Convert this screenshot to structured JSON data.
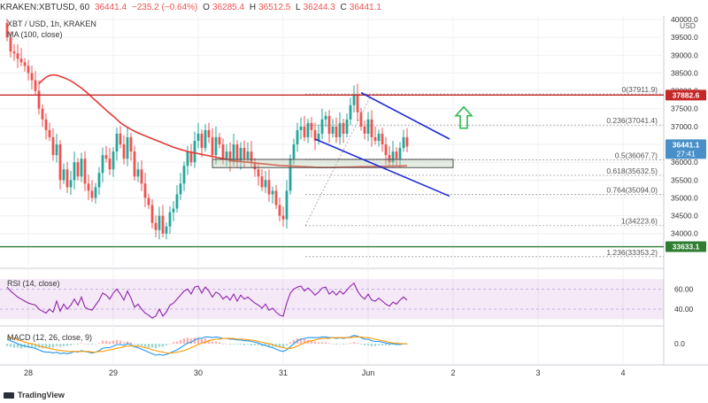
{
  "header": {
    "symbol": "KRAKEN:XBTUSD, 60",
    "last": "36441.4",
    "change": "−235.2 (−0.64%)",
    "o_label": "O",
    "o": "36285.4",
    "h_label": "H",
    "h": "36512.5",
    "l_label": "L",
    "l": "36244.3",
    "c_label": "C",
    "c": "36441.1"
  },
  "legend": {
    "pair": "XBT / USD, 1h, KRAKEN",
    "ma": "MA (100, close)",
    "rsi": "RSI (14, close)",
    "macd": "MACD (12, 26, close, 9)"
  },
  "currency": "USD",
  "branding": "TradingView",
  "colors": {
    "up": "#26a69a",
    "down": "#ef5350",
    "ma": "#e53935",
    "channel": "#1f2bd6",
    "resistance": "#c62828",
    "support": "#2e7d32",
    "rsi": "#8e24aa",
    "macd": "#2196f3",
    "signal": "#ff9800",
    "arrow": "#2db84a"
  },
  "chart_data": [
    {
      "type": "candlestick",
      "name": "price",
      "ylim": [
        33100,
        40100
      ],
      "y_ticks": [
        34000,
        34500,
        35000,
        35500,
        36000,
        36500,
        37000,
        37500,
        38000,
        38500,
        39000,
        39500,
        40000
      ],
      "y_tick_labels": [
        "34000.0",
        "34500.0",
        "35000.0",
        "35500.0",
        "36000.0",
        "36500.0",
        "37000.0",
        "37500.0",
        "38000.0",
        "38500.0",
        "39000.0",
        "39500.0",
        "40000.0"
      ],
      "x_ticks": [
        {
          "i": 6,
          "label": "28"
        },
        {
          "i": 30,
          "label": "29"
        },
        {
          "i": 54,
          "label": "30"
        },
        {
          "i": 78,
          "label": "31"
        },
        {
          "i": 102,
          "label": "Jun"
        },
        {
          "i": 126,
          "label": "2"
        },
        {
          "i": 150,
          "label": "3"
        },
        {
          "i": 174,
          "label": "4"
        }
      ],
      "closes": [
        39500,
        39100,
        39050,
        38900,
        38800,
        38700,
        38500,
        38300,
        38000,
        37500,
        37200,
        36900,
        36700,
        36200,
        36500,
        35500,
        35800,
        35300,
        35500,
        36000,
        35600,
        36100,
        35400,
        35200,
        35000,
        35300,
        35700,
        36200,
        36100,
        35800,
        36300,
        36800,
        36500,
        36100,
        36700,
        36300,
        35600,
        35800,
        35400,
        35000,
        34800,
        34300,
        34100,
        34500,
        34000,
        34200,
        34600,
        34700,
        35100,
        35400,
        35900,
        36300,
        36000,
        36600,
        36800,
        36400,
        36900,
        36700,
        36200,
        36700,
        36500,
        36100,
        36300,
        36000,
        36500,
        36000,
        36400,
        36100,
        36300,
        36000,
        35800,
        35600,
        35300,
        35500,
        35100,
        35200,
        34800,
        34500,
        34400,
        35200,
        36100,
        36500,
        36900,
        37000,
        36700,
        37100,
        36900,
        36600,
        36800,
        37200,
        37300,
        36800,
        37000,
        36700,
        37100,
        36800,
        37200,
        37600,
        37900,
        37400,
        37000,
        36800,
        37200,
        36700,
        36600,
        36800,
        36500,
        36200,
        36000,
        36300,
        36100,
        36400,
        36700,
        36441
      ],
      "opens_seed": 39900,
      "ma_100": [
        38200,
        38300,
        38380,
        38430,
        38450,
        38440,
        38410,
        38370,
        38330,
        38280,
        38220,
        38150,
        38080,
        38000,
        37910,
        37820,
        37730,
        37640,
        37550,
        37460,
        37370,
        37290,
        37200,
        37110,
        37040,
        36980,
        36920,
        36870,
        36820,
        36780,
        36740,
        36700,
        36660,
        36620,
        36580,
        36540,
        36500,
        36460,
        36420,
        36390,
        36360,
        36330,
        36300,
        36280,
        36260,
        36240,
        36220,
        36200,
        36180,
        36160,
        36140,
        36120,
        36100,
        36080,
        36060,
        36040,
        36030,
        36020,
        36010,
        36000,
        35990,
        35980,
        35970,
        35960,
        35950,
        35940,
        35930,
        35920,
        35910,
        35905,
        35900,
        35895,
        35890,
        35885,
        35880,
        35875,
        35870,
        35865,
        35860,
        35858,
        35856,
        35855,
        35855,
        35857,
        35860,
        35862,
        35864,
        35866,
        35868,
        35870,
        35872,
        35874,
        35876,
        35878,
        35880,
        35882,
        35884,
        35886,
        35888,
        35890,
        35892,
        35894,
        35896,
        35898,
        35900
      ]
    },
    {
      "type": "annotation",
      "name": "fibonacci",
      "levels": [
        {
          "ratio": "0",
          "price": 37911.9,
          "label": "0(37911.9)"
        },
        {
          "ratio": "0.236",
          "price": 37041.4,
          "label": "0.236(37041.4)"
        },
        {
          "ratio": "0.5",
          "price": 36067.7,
          "label": "0.5(36067.7)"
        },
        {
          "ratio": "0.618",
          "price": 35632.5,
          "label": "0.618(35632.5)"
        },
        {
          "ratio": "0.764",
          "price": 35094.0,
          "label": "0.764(35094.0)"
        },
        {
          "ratio": "1",
          "price": 34223.6,
          "label": "1(34223.6)"
        },
        {
          "ratio": "1.236",
          "price": 33353.2,
          "label": "1.236(33353.2)"
        }
      ],
      "resistance": 37882.6,
      "resistance_label": "37882.6",
      "support": 33633.1,
      "support_label": "33633.1",
      "current_price_label": "36441.1",
      "current_time_label": "27:41",
      "channel_upper": [
        {
          "i": 100,
          "p": 37950
        },
        {
          "i": 125,
          "p": 36650
        }
      ],
      "channel_lower": [
        {
          "i": 87,
          "p": 36650
        },
        {
          "i": 125,
          "p": 35050
        }
      ],
      "box": {
        "i0": 58,
        "i1": 126,
        "p0": 36080,
        "p1": 35850
      },
      "arrow_at": {
        "i": 129,
        "p": 37500
      }
    },
    {
      "type": "line",
      "name": "rsi",
      "ylim": [
        25,
        78
      ],
      "y_ticks": [
        40,
        60
      ],
      "y_tick_labels": [
        "40.00",
        "60.00"
      ],
      "band": [
        30,
        70
      ],
      "values": [
        62,
        58,
        55,
        52,
        50,
        48,
        46,
        45,
        44,
        40,
        38,
        36,
        40,
        37,
        48,
        38,
        45,
        40,
        44,
        50,
        44,
        52,
        42,
        40,
        39,
        44,
        49,
        56,
        54,
        50,
        56,
        60,
        55,
        49,
        58,
        51,
        42,
        45,
        40,
        36,
        34,
        31,
        33,
        40,
        33,
        37,
        44,
        46,
        50,
        54,
        58,
        60,
        55,
        62,
        63,
        56,
        62,
        58,
        52,
        57,
        55,
        50,
        53,
        49,
        55,
        48,
        54,
        50,
        52,
        49,
        46,
        44,
        41,
        45,
        39,
        41,
        37,
        34,
        33,
        46,
        56,
        60,
        62,
        63,
        58,
        61,
        58,
        54,
        57,
        61,
        62,
        55,
        58,
        54,
        58,
        55,
        59,
        63,
        66,
        58,
        53,
        50,
        55,
        49,
        48,
        51,
        48,
        45,
        43,
        47,
        45,
        49,
        52,
        49
      ]
    },
    {
      "type": "line",
      "name": "macd",
      "ylim": [
        -2.3,
        2.1
      ],
      "y_ticks": [
        0
      ],
      "y_tick_labels": [
        "0.0"
      ],
      "macd": [
        0.6,
        0.4,
        0.2,
        0.0,
        -0.2,
        -0.3,
        -0.4,
        -0.5,
        -0.6,
        -0.8,
        -1.0,
        -1.1,
        -1.1,
        -1.2,
        -1.1,
        -1.3,
        -1.2,
        -1.3,
        -1.2,
        -1.0,
        -1.1,
        -0.9,
        -1.0,
        -1.1,
        -1.2,
        -1.1,
        -0.9,
        -0.6,
        -0.5,
        -0.5,
        -0.3,
        -0.1,
        -0.1,
        -0.2,
        0.0,
        -0.1,
        -0.4,
        -0.5,
        -0.7,
        -0.9,
        -1.1,
        -1.3,
        -1.5,
        -1.4,
        -1.5,
        -1.4,
        -1.2,
        -1.0,
        -0.8,
        -0.5,
        -0.2,
        0.1,
        0.2,
        0.5,
        0.7,
        0.7,
        0.9,
        0.9,
        0.8,
        0.9,
        0.8,
        0.7,
        0.7,
        0.6,
        0.6,
        0.5,
        0.5,
        0.4,
        0.4,
        0.3,
        0.2,
        0.1,
        -0.1,
        -0.2,
        -0.4,
        -0.5,
        -0.7,
        -0.9,
        -1.0,
        -0.8,
        -0.4,
        0.0,
        0.4,
        0.6,
        0.7,
        0.8,
        0.8,
        0.8,
        0.8,
        0.9,
        0.9,
        0.8,
        0.8,
        0.7,
        0.8,
        0.7,
        0.8,
        0.9,
        1.1,
        1.0,
        0.8,
        0.6,
        0.6,
        0.4,
        0.3,
        0.3,
        0.2,
        0.1,
        0.0,
        0.0,
        -0.1,
        -0.1,
        0.0,
        0.0
      ],
      "signal": [
        0.9,
        0.8,
        0.7,
        0.5,
        0.4,
        0.2,
        0.1,
        0.0,
        -0.1,
        -0.3,
        -0.4,
        -0.5,
        -0.6,
        -0.7,
        -0.8,
        -0.9,
        -0.9,
        -1.0,
        -1.0,
        -1.0,
        -1.0,
        -1.0,
        -1.0,
        -1.0,
        -1.1,
        -1.1,
        -1.0,
        -1.0,
        -0.9,
        -0.8,
        -0.7,
        -0.6,
        -0.5,
        -0.4,
        -0.3,
        -0.3,
        -0.3,
        -0.3,
        -0.4,
        -0.5,
        -0.6,
        -0.8,
        -0.9,
        -1.0,
        -1.1,
        -1.2,
        -1.2,
        -1.2,
        -1.1,
        -1.0,
        -0.9,
        -0.7,
        -0.5,
        -0.3,
        -0.1,
        0.1,
        0.2,
        0.4,
        0.5,
        0.6,
        0.6,
        0.7,
        0.7,
        0.7,
        0.7,
        0.6,
        0.6,
        0.6,
        0.5,
        0.5,
        0.4,
        0.3,
        0.2,
        0.1,
        0.0,
        -0.1,
        -0.3,
        -0.4,
        -0.5,
        -0.6,
        -0.6,
        -0.5,
        -0.3,
        -0.1,
        0.1,
        0.3,
        0.4,
        0.5,
        0.6,
        0.7,
        0.7,
        0.7,
        0.8,
        0.8,
        0.8,
        0.8,
        0.8,
        0.8,
        0.9,
        0.9,
        0.9,
        0.8,
        0.8,
        0.7,
        0.6,
        0.5,
        0.4,
        0.3,
        0.2,
        0.1,
        0.1,
        0.0,
        0.0,
        0.0
      ]
    }
  ]
}
